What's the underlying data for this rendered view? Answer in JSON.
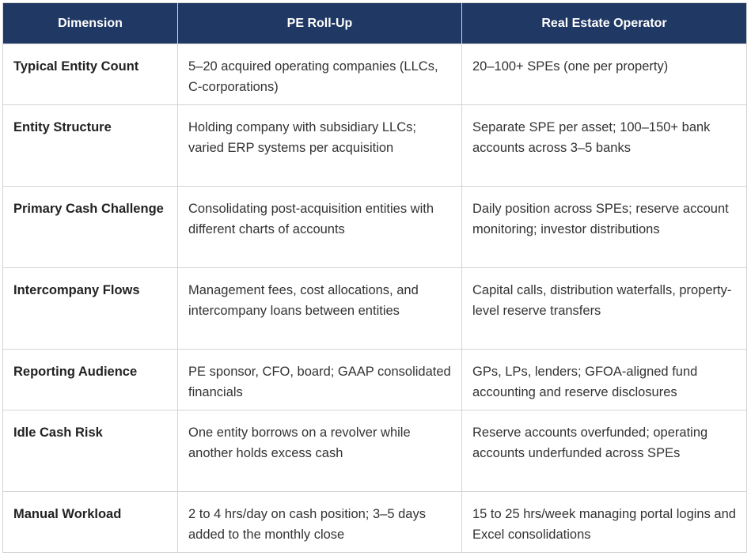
{
  "table": {
    "columns": [
      "Dimension",
      "PE Roll-Up",
      "Real Estate Operator"
    ],
    "rows": [
      [
        "Typical Entity Count",
        "5–20 acquired operating companies (LLCs, C-corporations)",
        "20–100+ SPEs (one per property)"
      ],
      [
        "Entity Structure",
        "Holding company with subsidiary LLCs; varied ERP systems per acquisition",
        "Separate SPE per asset; 100–150+ bank accounts across 3–5 banks"
      ],
      [
        "Primary Cash Challenge",
        "Consolidating post-acquisition entities with different charts of accounts",
        "Daily position across SPEs; reserve account monitoring; investor distributions"
      ],
      [
        "Intercompany Flows",
        "Management fees, cost allocations, and intercompany loans between entities",
        "Capital calls, distribution waterfalls, property-level reserve transfers"
      ],
      [
        "Reporting Audience",
        "PE sponsor, CFO, board; GAAP consolidated financials",
        "GPs, LPs, lenders; GFOA-aligned fund accounting and reserve disclosures"
      ],
      [
        "Idle Cash Risk",
        "One entity borrows on a revolver while another holds excess cash",
        "Reserve accounts overfunded; operating accounts underfunded across SPEs"
      ],
      [
        "Manual Workload",
        "2 to 4 hrs/day on cash position; 3–5 days added to the monthly close",
        "15 to 25 hrs/week managing portal logins and Excel consolidations"
      ]
    ]
  }
}
